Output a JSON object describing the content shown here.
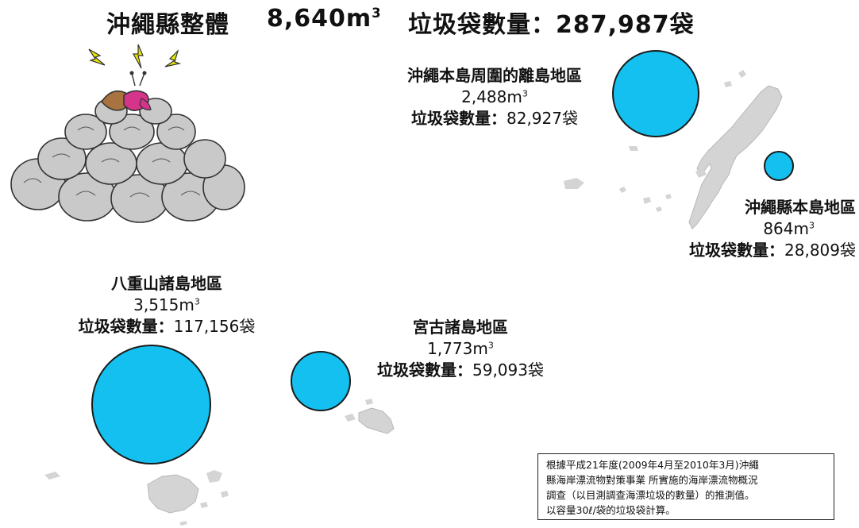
{
  "title": {
    "region": "沖繩縣整體",
    "volume": "8,640",
    "volume_unit": "m",
    "volume_unit_sup": "3",
    "bags_prefix": "垃圾袋數量：",
    "bags_value": "287,987袋"
  },
  "regions": [
    {
      "name": "沖繩本島周圍的離島地區",
      "volume": "2,488",
      "unit": "m",
      "unit_sup": "3",
      "bags_label": "垃圾袋數量：",
      "bags_value": "82,927袋"
    },
    {
      "name": "沖繩縣本島地區",
      "volume": "864",
      "unit": "m",
      "unit_sup": "3",
      "bags_label": "垃圾袋數量：",
      "bags_value": "28,809袋"
    },
    {
      "name": "八重山諸島地區",
      "volume": "3,515",
      "unit": "m",
      "unit_sup": "3",
      "bags_label": "垃圾袋數量：",
      "bags_value": "117,156袋"
    },
    {
      "name": "宮古諸島地區",
      "volume": "1,773",
      "unit": "m",
      "unit_sup": "3",
      "bags_label": "垃圾袋數量：",
      "bags_value": "59,093袋"
    }
  ],
  "note": {
    "lines": [
      "根據平成21年度(2009年4月至2010年3月)沖繩",
      "縣海岸漂流物對策事業 所實施的海岸漂流物概況",
      "調查（以目測調查海漂垃圾的數量）的推測值。",
      "以容量30ℓ/袋的垃圾袋計算。"
    ]
  },
  "colors": {
    "circle": "#13c0ef",
    "land": "#d4d4d4",
    "bags": "#c9c9c9"
  },
  "icons": [
    "garbage-bag-pile-illustration",
    "hermit-crab-illustration",
    "lightning-icon"
  ]
}
